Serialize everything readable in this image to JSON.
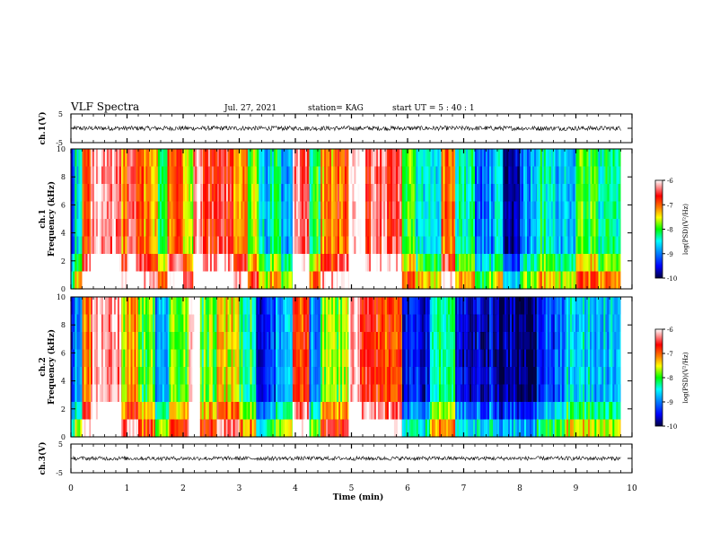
{
  "header": {
    "title": "VLF Spectra",
    "date": "Jul. 27, 2021",
    "station": "station= KAG",
    "start_time": "start UT =  5 : 40 : 1"
  },
  "colorbar": {
    "label": "log(PSD)(V²/Hz)",
    "ticks": [
      "-6",
      "-7",
      "-8",
      "-9",
      "-10"
    ],
    "range": [
      -10,
      -6
    ],
    "colors": [
      "#00004a",
      "#0000ff",
      "#0090ff",
      "#00ffff",
      "#00ff00",
      "#ffff00",
      "#ff8000",
      "#ff0000",
      "#ffffff"
    ]
  },
  "chart_data": [
    {
      "name": "ch1-waveform",
      "type": "line",
      "ylabel": "ch.1(V)",
      "ylim": [
        -5,
        5
      ],
      "yticks": [
        "5",
        "-5"
      ],
      "x_range": [
        0,
        10
      ],
      "baseline": 0,
      "amplitude": 0.8
    },
    {
      "name": "ch1-spectrogram",
      "type": "heatmap",
      "ylabel": "ch.1\nFrequency (kHz)",
      "ylim": [
        0,
        10
      ],
      "yticks": [
        "0",
        "2",
        "4",
        "6",
        "8",
        "10"
      ],
      "x_range": [
        0,
        9.8
      ],
      "segments": [
        {
          "x": [
            0.0,
            0.07
          ],
          "level": -9.2
        },
        {
          "x": [
            0.07,
            0.2
          ],
          "level": -8.6
        },
        {
          "x": [
            0.2,
            0.35
          ],
          "level": -6.9
        },
        {
          "x": [
            0.35,
            0.9
          ],
          "level": -6.2
        },
        {
          "x": [
            0.9,
            1.0
          ],
          "level": -7.1
        },
        {
          "x": [
            1.0,
            1.3
          ],
          "level": -6.6
        },
        {
          "x": [
            1.3,
            1.55
          ],
          "level": -7.2
        },
        {
          "x": [
            1.55,
            1.72
          ],
          "level": -8.1
        },
        {
          "x": [
            1.72,
            2.0
          ],
          "level": -6.9
        },
        {
          "x": [
            2.0,
            2.18
          ],
          "level": -7.6
        },
        {
          "x": [
            2.18,
            2.35
          ],
          "level": -6.1
        },
        {
          "x": [
            2.35,
            2.9
          ],
          "level": -6.6
        },
        {
          "x": [
            2.9,
            3.15
          ],
          "level": -7.1
        },
        {
          "x": [
            3.15,
            3.35
          ],
          "level": -7.8
        },
        {
          "x": [
            3.35,
            3.55
          ],
          "level": -8.7
        },
        {
          "x": [
            3.55,
            3.75
          ],
          "level": -8.2
        },
        {
          "x": [
            3.75,
            3.95
          ],
          "level": -8.9
        },
        {
          "x": [
            3.95,
            4.25
          ],
          "level": -6.3
        },
        {
          "x": [
            4.25,
            4.45
          ],
          "level": -8.1
        },
        {
          "x": [
            4.45,
            4.75
          ],
          "level": -7.2
        },
        {
          "x": [
            4.75,
            4.95
          ],
          "level": -6.9
        },
        {
          "x": [
            4.95,
            5.25
          ],
          "level": -6.0
        },
        {
          "x": [
            5.25,
            5.9
          ],
          "level": -6.5
        },
        {
          "x": [
            5.9,
            6.15
          ],
          "level": -8.0
        },
        {
          "x": [
            6.15,
            6.6
          ],
          "level": -8.6
        },
        {
          "x": [
            6.6,
            6.85
          ],
          "level": -7.1
        },
        {
          "x": [
            6.85,
            7.2
          ],
          "level": -8.4
        },
        {
          "x": [
            7.2,
            7.55
          ],
          "level": -9.0
        },
        {
          "x": [
            7.55,
            7.7
          ],
          "level": -8.5
        },
        {
          "x": [
            7.7,
            8.0
          ],
          "level": -9.8
        },
        {
          "x": [
            8.0,
            8.3
          ],
          "level": -8.9
        },
        {
          "x": [
            8.3,
            8.6
          ],
          "level": -8.3
        },
        {
          "x": [
            8.6,
            9.0
          ],
          "level": -8.8
        },
        {
          "x": [
            9.0,
            9.4
          ],
          "level": -8.0
        },
        {
          "x": [
            9.4,
            9.8
          ],
          "level": -8.3
        }
      ]
    },
    {
      "name": "ch2-spectrogram",
      "type": "heatmap",
      "ylabel": "ch.2\nFrequency (kHz)",
      "ylim": [
        0,
        10
      ],
      "yticks": [
        "0",
        "2",
        "4",
        "6",
        "8",
        "10"
      ],
      "x_range": [
        0,
        9.8
      ],
      "segments": [
        {
          "x": [
            0.0,
            0.07
          ],
          "level": -9.4
        },
        {
          "x": [
            0.07,
            0.2
          ],
          "level": -8.8
        },
        {
          "x": [
            0.2,
            0.35
          ],
          "level": -7.2
        },
        {
          "x": [
            0.35,
            0.9
          ],
          "level": -6.2
        },
        {
          "x": [
            0.9,
            1.0
          ],
          "level": -7.6
        },
        {
          "x": [
            1.0,
            1.2
          ],
          "level": -7.2
        },
        {
          "x": [
            1.2,
            1.5
          ],
          "level": -8.0
        },
        {
          "x": [
            1.5,
            1.75
          ],
          "level": -8.8
        },
        {
          "x": [
            1.75,
            2.1
          ],
          "level": -7.9
        },
        {
          "x": [
            2.1,
            2.3
          ],
          "level": -6.0
        },
        {
          "x": [
            2.3,
            2.6
          ],
          "level": -7.9
        },
        {
          "x": [
            2.6,
            3.0
          ],
          "level": -7.4
        },
        {
          "x": [
            3.0,
            3.3
          ],
          "level": -8.2
        },
        {
          "x": [
            3.3,
            3.65
          ],
          "level": -9.4
        },
        {
          "x": [
            3.65,
            3.95
          ],
          "level": -8.8
        },
        {
          "x": [
            3.95,
            4.25
          ],
          "level": -6.8
        },
        {
          "x": [
            4.25,
            4.45
          ],
          "level": -8.9
        },
        {
          "x": [
            4.45,
            4.95
          ],
          "level": -7.8
        },
        {
          "x": [
            4.95,
            5.15
          ],
          "level": -6.0
        },
        {
          "x": [
            5.15,
            5.9
          ],
          "level": -6.8
        },
        {
          "x": [
            5.9,
            6.4
          ],
          "level": -9.5
        },
        {
          "x": [
            6.4,
            6.85
          ],
          "level": -8.3
        },
        {
          "x": [
            6.85,
            7.6
          ],
          "level": -9.6
        },
        {
          "x": [
            7.6,
            8.3
          ],
          "level": -9.9
        },
        {
          "x": [
            8.3,
            8.8
          ],
          "level": -9.2
        },
        {
          "x": [
            8.8,
            9.3
          ],
          "level": -8.6
        },
        {
          "x": [
            9.3,
            9.8
          ],
          "level": -8.7
        }
      ]
    },
    {
      "name": "ch3-waveform",
      "type": "line",
      "ylabel": "ch.3(V)",
      "ylim": [
        -5,
        5
      ],
      "yticks": [
        "5",
        "-5"
      ],
      "x_range": [
        0,
        10
      ],
      "baseline": 0,
      "amplitude": 0.7
    }
  ],
  "xaxis": {
    "label": "Time (min)",
    "ticks": [
      "0",
      "1",
      "2",
      "3",
      "4",
      "5",
      "6",
      "7",
      "8",
      "9",
      "10"
    ],
    "range": [
      0,
      10
    ]
  }
}
